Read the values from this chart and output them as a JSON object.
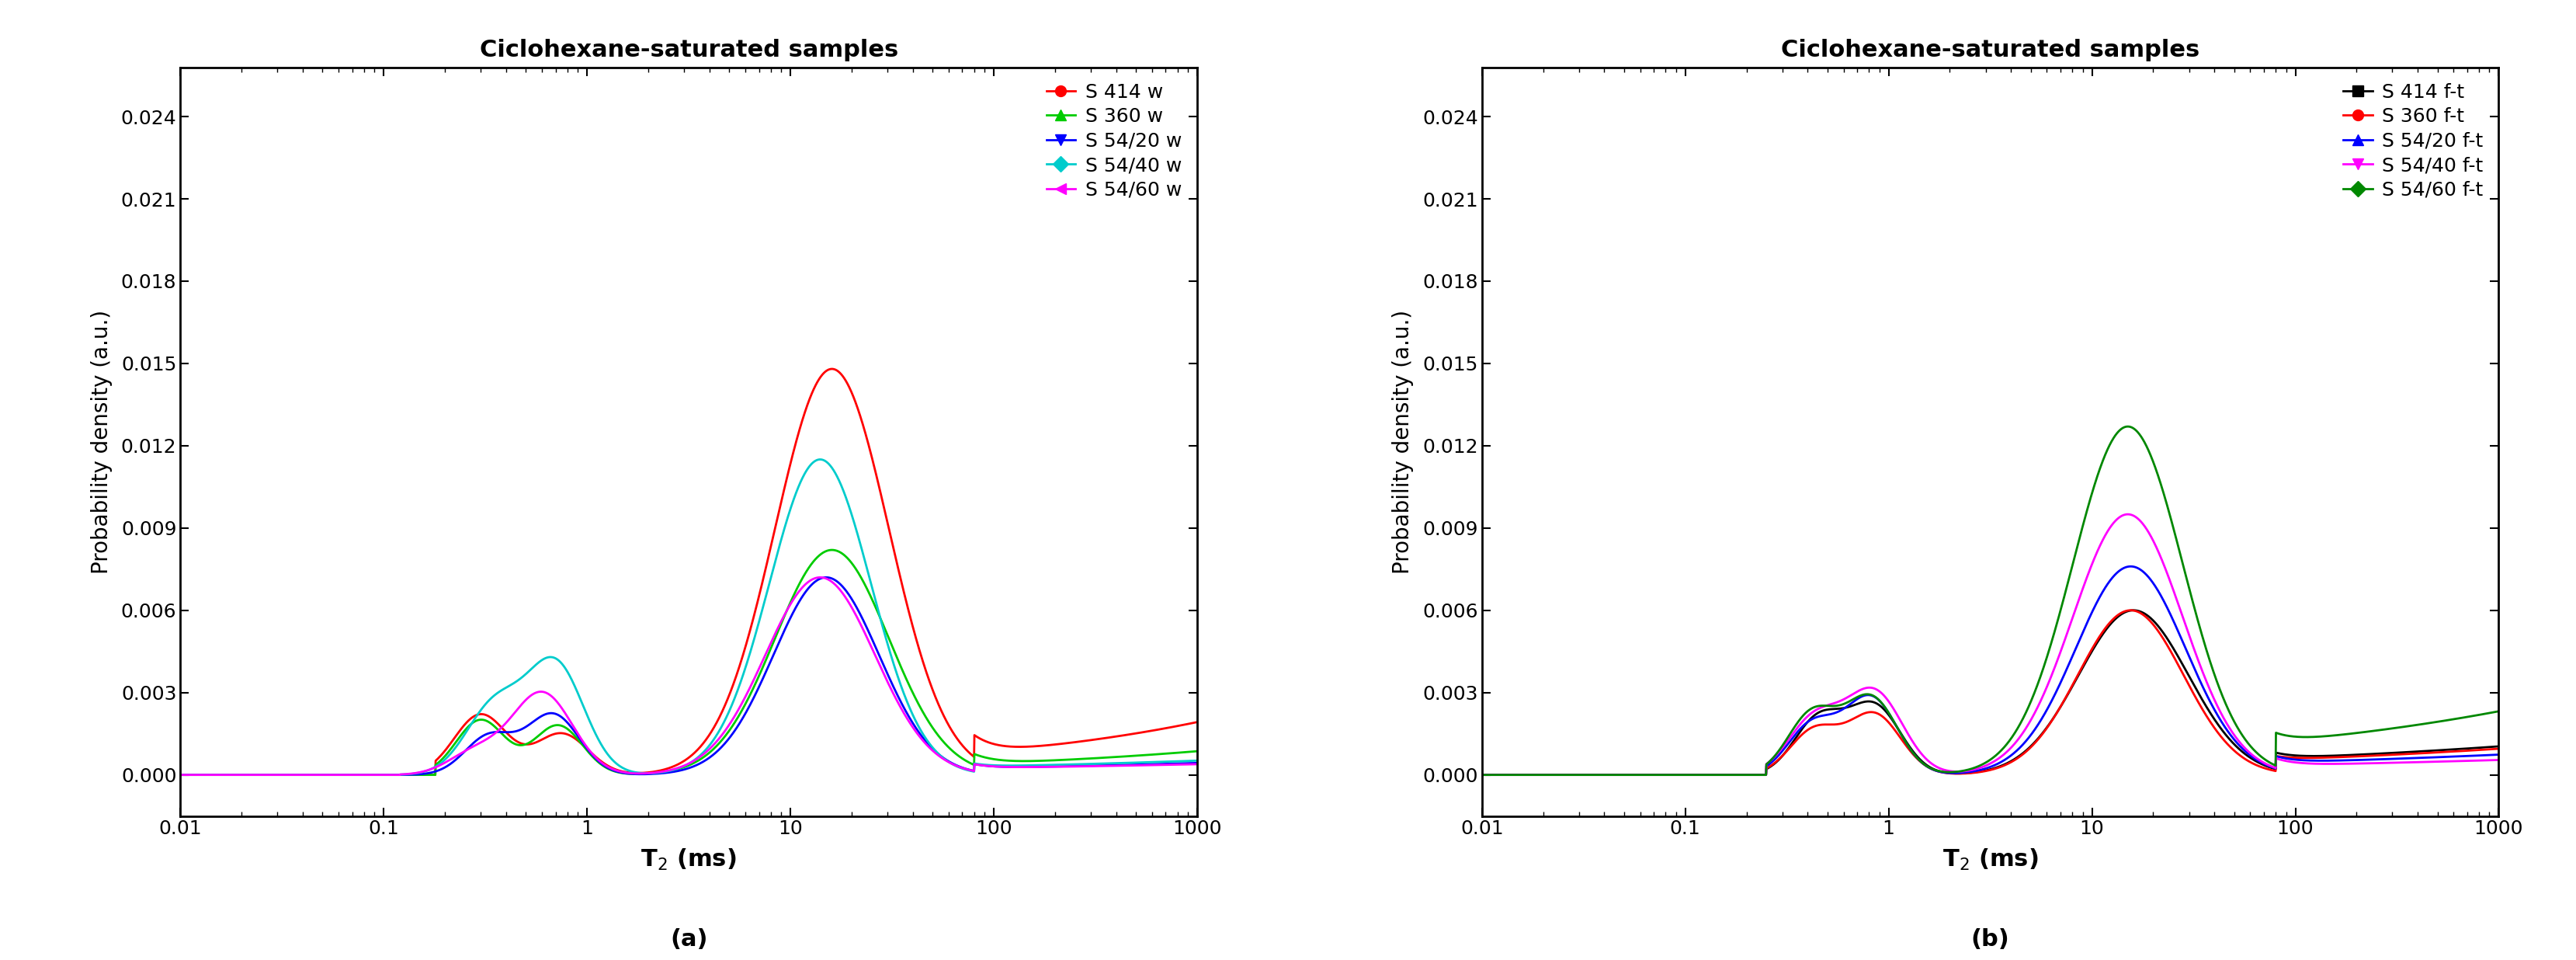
{
  "title": "Ciclohexane-saturated samples",
  "xlabel": "T$_2$ (ms)",
  "ylabel": "Probability density (a.u.)",
  "xlim": [
    0.01,
    1000
  ],
  "yticks": [
    0.0,
    0.003,
    0.006,
    0.009,
    0.012,
    0.015,
    0.018,
    0.021,
    0.024
  ],
  "panel_a_label": "(a)",
  "panel_b_label": "(b)",
  "series_a": [
    {
      "label": "S 414 w",
      "color": "#ff0000",
      "marker": "o",
      "lw": 2.0
    },
    {
      "label": "S 360 w",
      "color": "#00cc00",
      "marker": "^",
      "lw": 2.0
    },
    {
      "label": "S 54/20 w",
      "color": "#0000ff",
      "marker": "v",
      "lw": 2.0
    },
    {
      "label": "S 54/40 w",
      "color": "#00cccc",
      "marker": "D",
      "lw": 2.0
    },
    {
      "label": "S 54/60 w",
      "color": "#ff00ff",
      "marker": "<",
      "lw": 2.0
    }
  ],
  "series_b": [
    {
      "label": "S 414 f-t",
      "color": "#000000",
      "marker": "s",
      "lw": 2.0
    },
    {
      "label": "S 360 f-t",
      "color": "#ff0000",
      "marker": "o",
      "lw": 2.0
    },
    {
      "label": "S 54/20 f-t",
      "color": "#0000ff",
      "marker": "^",
      "lw": 2.0
    },
    {
      "label": "S 54/40 f-t",
      "color": "#ff00ff",
      "marker": "v",
      "lw": 2.0
    },
    {
      "label": "S 54/60 f-t",
      "color": "#008800",
      "marker": "D",
      "lw": 2.0
    }
  ]
}
